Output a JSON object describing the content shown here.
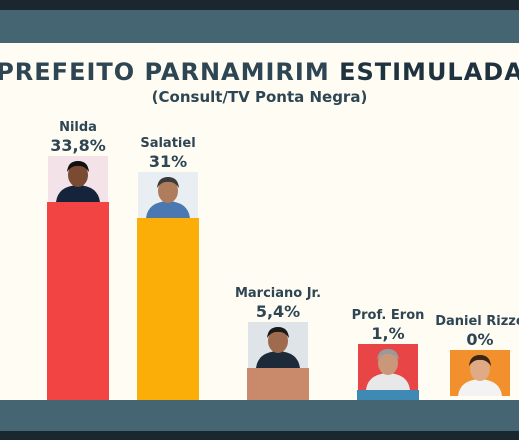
{
  "chart_data": {
    "type": "bar",
    "title_prefix": "PREFEITO PARNAMIRIM ",
    "title_emphasis": "ESTIMULADA",
    "subtitle": "(Consult/TV Ponta Negra)",
    "xlabel": "",
    "ylabel": "",
    "ylim": [
      0,
      35
    ],
    "grid": false,
    "categories": [
      "Nilda",
      "Salatiel",
      "Marciano Jr.",
      "Prof. Eron",
      "Daniel Rizzo"
    ],
    "values": [
      33.8,
      31,
      5.4,
      1,
      0
    ],
    "value_labels": [
      "33,8%",
      "31%",
      "5,4%",
      "1,%",
      "0%"
    ],
    "bar_colors": [
      "#f24443",
      "#fcae08",
      "#c9896b",
      "#3f8ab5",
      "#f09a3e"
    ]
  },
  "frame": {
    "band_color": "#466573",
    "background_color": "#fffdf3",
    "text_color": "#2e4553"
  }
}
